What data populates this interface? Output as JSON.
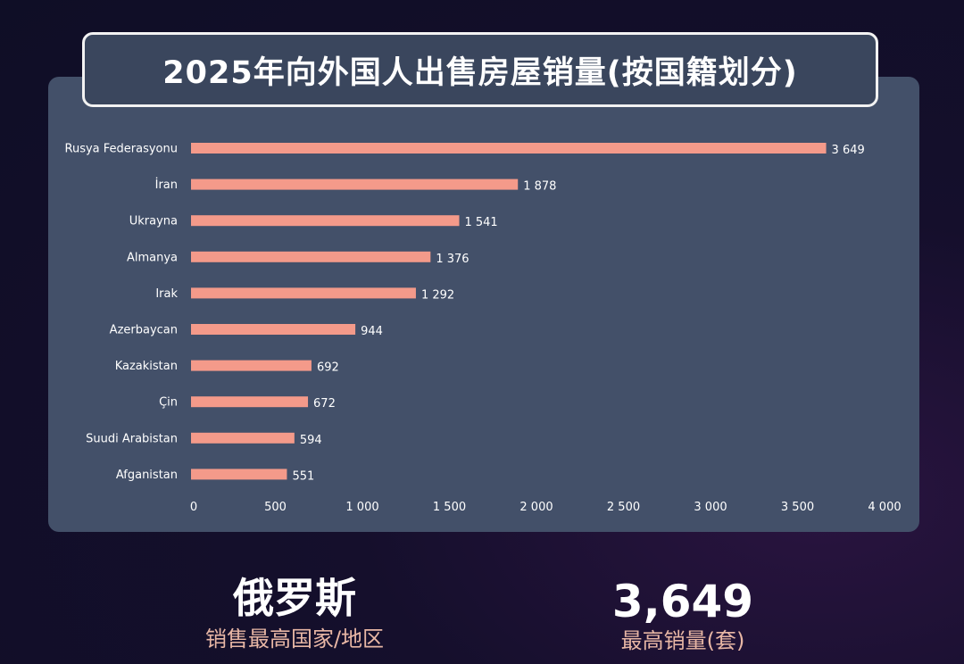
{
  "title": "2025年向外国人出售房屋销量(按国籍划分)",
  "chart_data": {
    "type": "bar",
    "orientation": "horizontal",
    "categories": [
      "Rusya Federasyonu",
      "İran",
      "Ukrayna",
      "Almanya",
      "Irak",
      "Azerbaycan",
      "Kazakistan",
      "Çin",
      "Suudi Arabistan",
      "Afganistan"
    ],
    "values": [
      3649,
      1878,
      1541,
      1376,
      1292,
      944,
      692,
      672,
      594,
      551
    ],
    "value_labels": [
      "3 649",
      "1 878",
      "1 541",
      "1 376",
      "1 292",
      "944",
      "692",
      "672",
      "594",
      "551"
    ],
    "xlim": [
      0,
      4000
    ],
    "x_ticks": [
      0,
      500,
      1000,
      1500,
      2000,
      2500,
      3000,
      3500,
      4000
    ],
    "x_tick_labels": [
      "0",
      "500",
      "1 000",
      "1 500",
      "2 000",
      "2 500",
      "3 000",
      "3 500",
      "4 000"
    ],
    "grid": false,
    "bar_color": "#f49a8a"
  },
  "stats": {
    "top_country": {
      "value": "俄罗斯",
      "label": "销售最高国家/地区"
    },
    "top_sales": {
      "value": "3,649",
      "label": "最高销量(套)"
    }
  },
  "colors": {
    "panel": "#435069",
    "title_border": "#f2f2f2",
    "label_accent": "#e8b7a5"
  }
}
